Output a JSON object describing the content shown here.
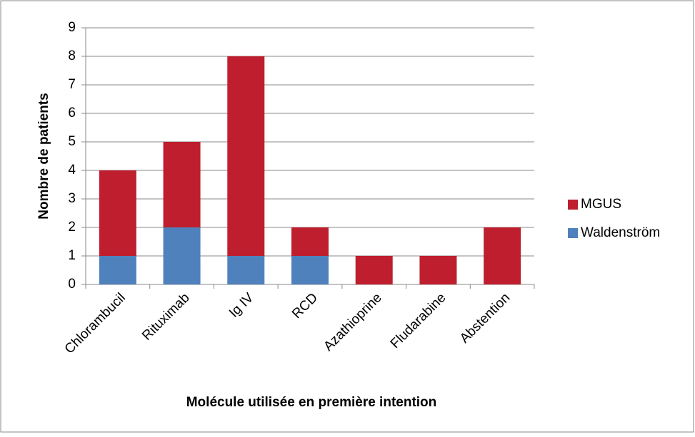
{
  "chart_data": {
    "type": "stacked_bar",
    "x_label": "Molécule utilisée en première intention",
    "y_label": "Nombre de patients",
    "categories": [
      "Chlorambucil",
      "Rituximab",
      "Ig IV",
      "RCD",
      "Azathioprine",
      "Fludarabine",
      "Abstention"
    ],
    "series": [
      {
        "name": "Waldenström",
        "color": "#4f81bd",
        "values": [
          1,
          2,
          1,
          1,
          0,
          0,
          0
        ]
      },
      {
        "name": "MGUS",
        "color": "#be1e2d",
        "values": [
          3,
          3,
          7,
          1,
          1,
          1,
          2
        ]
      }
    ],
    "ylim": [
      0,
      9
    ],
    "yticks": [
      0,
      1,
      2,
      3,
      4,
      5,
      6,
      7,
      8,
      9
    ],
    "grid": true,
    "legend": "right"
  }
}
